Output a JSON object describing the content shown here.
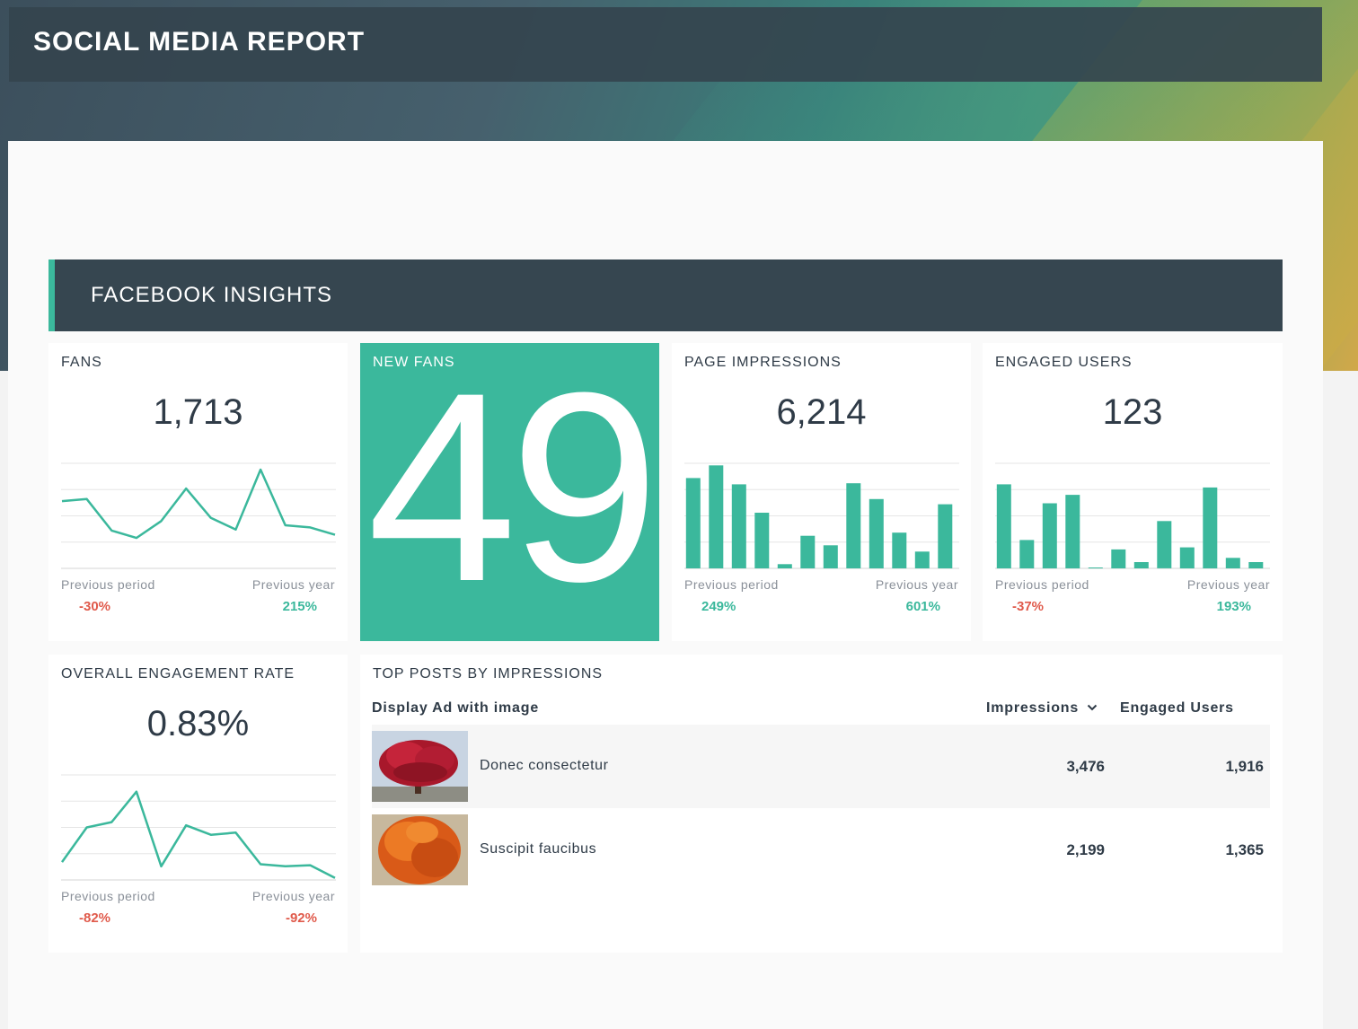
{
  "report": {
    "title": "SOCIAL MEDIA REPORT"
  },
  "section": {
    "title": "FACEBOOK INSIGHTS"
  },
  "colors": {
    "accent": "#3bb89c",
    "negative": "#e05a4b",
    "dark": "#364650"
  },
  "cards": {
    "fans": {
      "label": "FANS",
      "value": "1,713",
      "prev_period_label": "Previous period",
      "prev_period_value": "-30%",
      "prev_year_label": "Previous year",
      "prev_year_value": "215%",
      "series": [
        64,
        66,
        36,
        29,
        45,
        76,
        48,
        37,
        94,
        41,
        39,
        32
      ]
    },
    "new_fans": {
      "label": "NEW FANS",
      "value": "49"
    },
    "page_impressions": {
      "label": "PAGE IMPRESSIONS",
      "value": "6,214",
      "prev_period_label": "Previous period",
      "prev_period_value": "249%",
      "prev_year_label": "Previous year",
      "prev_year_value": "601%",
      "series": [
        86,
        98,
        80,
        53,
        4,
        31,
        22,
        81,
        66,
        34,
        16,
        61
      ]
    },
    "engaged_users": {
      "label": "ENGAGED USERS",
      "value": "123",
      "prev_period_label": "Previous period",
      "prev_period_value": "-37%",
      "prev_year_label": "Previous year",
      "prev_year_value": "193%",
      "series": [
        80,
        27,
        62,
        70,
        0,
        18,
        6,
        45,
        20,
        77,
        10,
        6
      ]
    },
    "engagement_rate": {
      "label": "OVERALL ENGAGEMENT RATE",
      "value": "0.83%",
      "prev_period_label": "Previous period",
      "prev_period_value": "-82%",
      "prev_year_label": "Previous year",
      "prev_year_value": "-92%",
      "series": [
        17,
        50,
        55,
        84,
        13,
        52,
        43,
        45,
        15,
        13,
        14,
        2
      ]
    }
  },
  "top_posts": {
    "label": "TOP POSTS BY IMPRESSIONS",
    "col_post": "Display Ad with image",
    "col_impressions": "Impressions",
    "col_engaged": "Engaged Users",
    "rows": [
      {
        "name": "Donec consectetur",
        "impressions": "3,476",
        "engaged": "1,916",
        "thumb_icon": "red-tree-thumbnail"
      },
      {
        "name": "Suscipit faucibus",
        "impressions": "2,199",
        "engaged": "1,365",
        "thumb_icon": "orange-tree-thumbnail"
      }
    ]
  }
}
